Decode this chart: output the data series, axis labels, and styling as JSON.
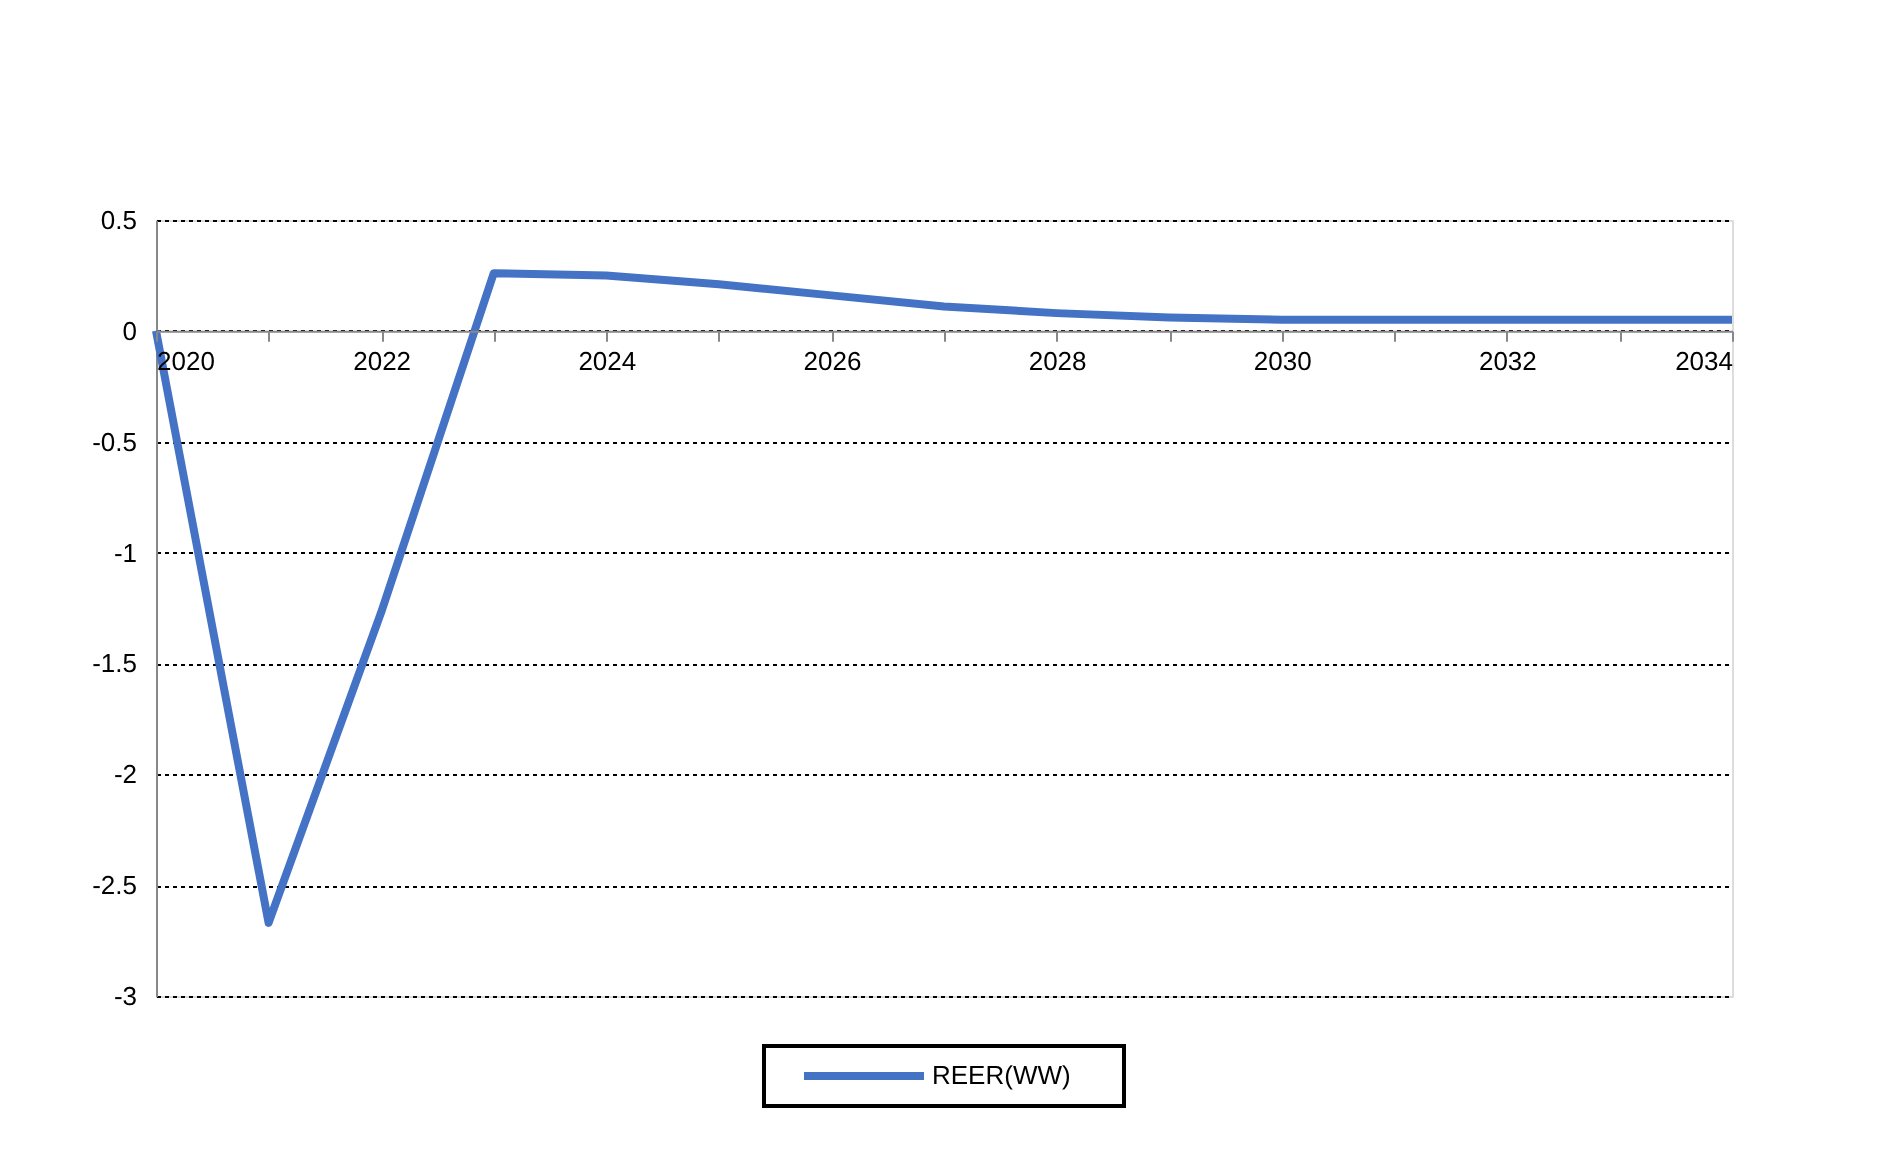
{
  "chart_data": {
    "type": "line",
    "x": [
      2020,
      2021,
      2022,
      2023,
      2024,
      2025,
      2026,
      2027,
      2028,
      2029,
      2030,
      2031,
      2032,
      2033,
      2034
    ],
    "series": [
      {
        "name": "REER(WW)",
        "color": "#4472c4",
        "values": [
          0,
          -2.67,
          -1.27,
          0.26,
          0.25,
          0.21,
          0.16,
          0.11,
          0.08,
          0.06,
          0.05,
          0.05,
          0.05,
          0.05,
          0.05
        ]
      }
    ],
    "xlim": [
      2020,
      2034
    ],
    "xticks": [
      2020,
      {
        "value": 2021,
        "label": null
      },
      2022,
      {
        "value": 2023,
        "label": null
      },
      2024,
      {
        "value": 2025,
        "label": null
      },
      2026,
      {
        "value": 2027,
        "label": null
      },
      2028,
      {
        "value": 2029,
        "label": null
      },
      2030,
      {
        "value": 2031,
        "label": null
      },
      2032,
      {
        "value": 2033,
        "label": null
      },
      2034
    ],
    "ylim": [
      -3,
      0.5
    ],
    "yticks": [
      -3,
      -2.5,
      -2,
      -1.5,
      -1,
      -0.5,
      0,
      0.5
    ],
    "grid": "y",
    "legend": "bottom",
    "marker": "none",
    "line_style": "solid"
  }
}
